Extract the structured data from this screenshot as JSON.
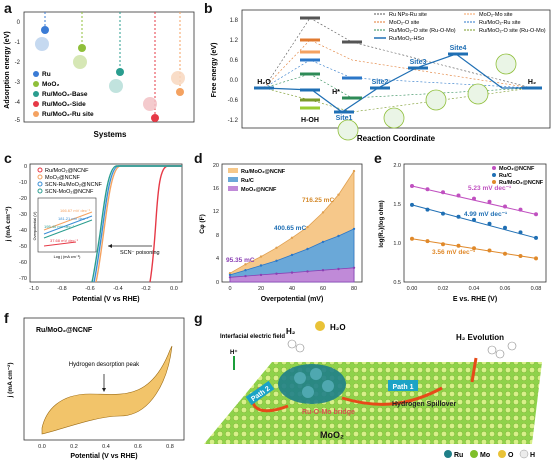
{
  "panels": {
    "a": {
      "label": "a",
      "xlabel": "Systems",
      "ylabel": "Adsorption energy (eV)",
      "legend": [
        "Ru",
        "MoO₂",
        "Ru/MoO₂-Base",
        "Ru/MoO₂-Side",
        "Ru/MoO₂-Ru site"
      ],
      "colors": [
        "#3a7bd5",
        "#8fbf3a",
        "#2a9d8f",
        "#e63946",
        "#f4a261"
      ],
      "yticks": [
        "0",
        "-1",
        "-2",
        "-3",
        "-4",
        "-5"
      ]
    },
    "b": {
      "label": "b",
      "xlabel": "Reaction Coordinate",
      "ylabel": "Free energy (eV)",
      "yticks": [
        "1.8",
        "1.2",
        "0.6",
        "0.0",
        "-0.6",
        "-1.2"
      ],
      "legend": [
        "Ru NPs-Ru site",
        "MoO₂-O site",
        "Ru/MoO₂-O site (Ru-O-Mo)",
        "Ru/MoO₂-HSo",
        "MoO₂-Mo site",
        "Ru/MoO₂-Ru site",
        "Ru/MoO₂-O site (Ru-O-Mo)"
      ],
      "states": [
        "H₂O",
        "H-OH",
        "Site1",
        "Site2",
        "Site3",
        "Site4",
        "H₂"
      ],
      "hstar": "H*"
    },
    "c": {
      "label": "c",
      "xlabel": "Potential (V vs RHE)",
      "ylabel": "j (mA cm⁻²)",
      "legend": [
        "Ru/MoO₂@NCNF",
        "MoO₂@NCNF",
        "SCN-Ru/MoO₂@NCNF",
        "SCN-MoO₂@NCNF"
      ],
      "annotation": "SCN⁻ poisoning",
      "xticks": [
        "-1.0",
        "-0.8",
        "-0.6",
        "-0.4",
        "-0.2",
        "0.0"
      ],
      "yticks": [
        "0",
        "-10",
        "-20",
        "-30",
        "-40",
        "-50",
        "-60",
        "-70"
      ],
      "inset_ylabel": "Overpotential (V)",
      "inset_xlabel": "Log j (mA cm⁻²)",
      "inset_tafel": [
        "166.67 mV dec⁻¹",
        "181.21 mV dec⁻¹",
        "195.40 mV dec⁻¹",
        "37.68 mV dec⁻¹"
      ]
    },
    "d": {
      "label": "d",
      "xlabel": "Overpotential (mV)",
      "ylabel": "Cφ (F)",
      "legend": [
        "Ru/MoO₂@NCNF",
        "Ru/C",
        "MoO₂@NCNF"
      ],
      "values_text": [
        "716.25 mC",
        "400.65 mC",
        "95.35 mC"
      ],
      "xticks": [
        "0",
        "20",
        "40",
        "60",
        "80"
      ],
      "yticks": [
        "0",
        "4",
        "8",
        "12",
        "16",
        "20"
      ]
    },
    "e": {
      "label": "e",
      "xlabel": "E vs. RHE (V)",
      "ylabel": "log(R₁)(log ohm)",
      "legend": [
        "MoO₂@NCNF",
        "Ru/C",
        "Ru/MoO₂@NCNF"
      ],
      "slopes": [
        "5.23 mV dec⁻¹",
        "4.99 mV dec⁻¹",
        "3.56 mV dec⁻¹"
      ],
      "xticks": [
        "0.00",
        "0.02",
        "0.04",
        "0.06",
        "0.08"
      ],
      "yticks": [
        "2.0",
        "1.5",
        "1.0",
        "0.5"
      ]
    },
    "f": {
      "label": "f",
      "title": "Ru/MoO₂@NCNF",
      "annotation": "Hydrogen desorption peak",
      "xlabel": "Potential (V vs RHE)",
      "ylabel": "j (mA cm⁻²)",
      "xticks": [
        "0.0",
        "0.2",
        "0.4",
        "0.6",
        "0.8"
      ]
    },
    "g": {
      "label": "g",
      "field": "Interfacial electric field",
      "hplus": "H⁺",
      "h2": "H₂",
      "h2o": "H₂O",
      "evolution": "H₂ Evolution",
      "path1": "Path 1",
      "path2": "Path 2",
      "bridge": "Ru-O-Mo bridge",
      "spillover": "Hydrogen Spillover",
      "substrate": "MoO₂",
      "legend": [
        "Ru",
        "Mo",
        "O",
        "H"
      ],
      "legend_colors": [
        "#1f7f88",
        "#7fbf2a",
        "#e9c237",
        "#ececec"
      ]
    }
  },
  "chart_data": [
    {
      "type": "line",
      "title": "",
      "xlabel": "Overpotential (mV)",
      "ylabel": "Cφ (F)",
      "x": [
        0,
        10,
        20,
        30,
        40,
        50,
        60,
        70,
        80
      ],
      "series": [
        {
          "name": "Ru/MoO₂@NCNF",
          "values": [
            1.5,
            3.0,
            4.3,
            5.8,
            7.5,
            9.3,
            11.8,
            14.8,
            18.8
          ]
        },
        {
          "name": "Ru/C",
          "values": [
            1.2,
            2.0,
            2.8,
            3.6,
            4.6,
            5.6,
            6.8,
            7.8,
            9.0
          ]
        },
        {
          "name": "MoO₂@NCNF",
          "values": [
            0.8,
            1.0,
            1.2,
            1.4,
            1.6,
            1.8,
            2.0,
            2.2,
            2.4
          ]
        }
      ],
      "ylim": [
        0,
        20
      ]
    },
    {
      "type": "scatter",
      "title": "",
      "xlabel": "E vs. RHE (V)",
      "ylabel": "log(R₁)(log ohm)",
      "x": [
        0.0,
        0.01,
        0.02,
        0.03,
        0.04,
        0.05,
        0.06,
        0.07,
        0.08
      ],
      "series": [
        {
          "name": "MoO₂@NCNF",
          "values": [
            1.72,
            1.68,
            1.64,
            1.6,
            1.56,
            1.52,
            1.46,
            1.42,
            1.36
          ]
        },
        {
          "name": "Ru/C",
          "values": [
            1.48,
            1.42,
            1.37,
            1.33,
            1.29,
            1.24,
            1.19,
            1.13,
            1.06
          ]
        },
        {
          "name": "Ru/MoO₂@NCNF",
          "values": [
            1.05,
            1.02,
            0.98,
            0.96,
            0.93,
            0.9,
            0.86,
            0.83,
            0.8
          ]
        }
      ],
      "ylim": [
        0.5,
        2.0
      ],
      "xlim": [
        0.0,
        0.08
      ]
    }
  ]
}
